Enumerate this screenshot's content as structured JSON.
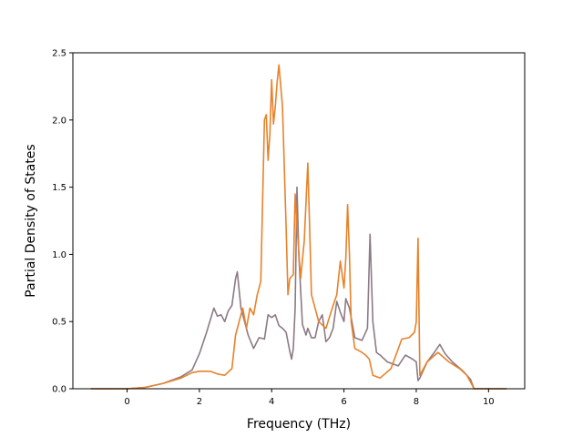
{
  "chart_data": {
    "type": "line",
    "title": "",
    "xlabel": "Frequency (THz)",
    "ylabel": "Partial Density of States",
    "xlim": [
      -1.5,
      11.0
    ],
    "ylim": [
      0.0,
      2.5
    ],
    "xticks": [
      0,
      2,
      4,
      6,
      8,
      10
    ],
    "yticks": [
      0.0,
      0.5,
      1.0,
      1.5,
      2.0,
      2.5
    ],
    "xtick_labels": [
      "0",
      "2",
      "4",
      "6",
      "8",
      "10"
    ],
    "ytick_labels": [
      "0.0",
      "0.5",
      "1.0",
      "1.5",
      "2.0",
      "2.5"
    ],
    "grid": false,
    "legend": "none",
    "series": [
      {
        "color": "#8c7a86",
        "points": [
          [
            -1.0,
            0.0
          ],
          [
            0.0,
            0.0
          ],
          [
            0.5,
            0.01
          ],
          [
            1.0,
            0.04
          ],
          [
            1.5,
            0.09
          ],
          [
            1.8,
            0.14
          ],
          [
            2.0,
            0.26
          ],
          [
            2.2,
            0.42
          ],
          [
            2.4,
            0.6
          ],
          [
            2.5,
            0.54
          ],
          [
            2.6,
            0.55
          ],
          [
            2.7,
            0.5
          ],
          [
            2.8,
            0.58
          ],
          [
            2.9,
            0.62
          ],
          [
            3.0,
            0.82
          ],
          [
            3.05,
            0.87
          ],
          [
            3.15,
            0.6
          ],
          [
            3.25,
            0.5
          ],
          [
            3.35,
            0.4
          ],
          [
            3.5,
            0.3
          ],
          [
            3.65,
            0.38
          ],
          [
            3.8,
            0.37
          ],
          [
            3.9,
            0.55
          ],
          [
            4.0,
            0.53
          ],
          [
            4.1,
            0.55
          ],
          [
            4.2,
            0.47
          ],
          [
            4.3,
            0.45
          ],
          [
            4.4,
            0.42
          ],
          [
            4.5,
            0.28
          ],
          [
            4.55,
            0.22
          ],
          [
            4.6,
            0.3
          ],
          [
            4.65,
            0.6
          ],
          [
            4.7,
            1.5
          ],
          [
            4.75,
            1.0
          ],
          [
            4.85,
            0.48
          ],
          [
            4.95,
            0.4
          ],
          [
            5.0,
            0.45
          ],
          [
            5.1,
            0.38
          ],
          [
            5.2,
            0.38
          ],
          [
            5.3,
            0.5
          ],
          [
            5.4,
            0.55
          ],
          [
            5.5,
            0.35
          ],
          [
            5.6,
            0.38
          ],
          [
            5.7,
            0.45
          ],
          [
            5.8,
            0.65
          ],
          [
            5.9,
            0.57
          ],
          [
            6.0,
            0.5
          ],
          [
            6.05,
            0.67
          ],
          [
            6.15,
            0.6
          ],
          [
            6.3,
            0.38
          ],
          [
            6.5,
            0.36
          ],
          [
            6.65,
            0.45
          ],
          [
            6.72,
            1.15
          ],
          [
            6.8,
            0.5
          ],
          [
            6.9,
            0.27
          ],
          [
            7.0,
            0.25
          ],
          [
            7.2,
            0.2
          ],
          [
            7.5,
            0.17
          ],
          [
            7.7,
            0.25
          ],
          [
            7.9,
            0.22
          ],
          [
            8.0,
            0.2
          ],
          [
            8.05,
            0.06
          ],
          [
            8.1,
            0.08
          ],
          [
            8.3,
            0.2
          ],
          [
            8.5,
            0.27
          ],
          [
            8.65,
            0.33
          ],
          [
            8.8,
            0.26
          ],
          [
            9.0,
            0.2
          ],
          [
            9.3,
            0.13
          ],
          [
            9.5,
            0.07
          ],
          [
            9.6,
            0.0
          ],
          [
            10.5,
            0.0
          ]
        ]
      },
      {
        "color": "#e8822a",
        "points": [
          [
            -1.0,
            0.0
          ],
          [
            0.0,
            0.0
          ],
          [
            0.5,
            0.01
          ],
          [
            1.0,
            0.04
          ],
          [
            1.5,
            0.08
          ],
          [
            1.8,
            0.12
          ],
          [
            2.0,
            0.13
          ],
          [
            2.3,
            0.13
          ],
          [
            2.5,
            0.11
          ],
          [
            2.7,
            0.1
          ],
          [
            2.9,
            0.15
          ],
          [
            3.0,
            0.4
          ],
          [
            3.1,
            0.5
          ],
          [
            3.2,
            0.6
          ],
          [
            3.3,
            0.45
          ],
          [
            3.4,
            0.6
          ],
          [
            3.5,
            0.55
          ],
          [
            3.6,
            0.7
          ],
          [
            3.7,
            0.8
          ],
          [
            3.8,
            2.0
          ],
          [
            3.85,
            2.04
          ],
          [
            3.9,
            1.7
          ],
          [
            3.95,
            1.9
          ],
          [
            4.0,
            2.3
          ],
          [
            4.05,
            1.97
          ],
          [
            4.1,
            2.1
          ],
          [
            4.15,
            2.28
          ],
          [
            4.2,
            2.41
          ],
          [
            4.3,
            2.1
          ],
          [
            4.4,
            1.2
          ],
          [
            4.45,
            0.7
          ],
          [
            4.5,
            0.82
          ],
          [
            4.6,
            0.85
          ],
          [
            4.65,
            1.45
          ],
          [
            4.7,
            1.22
          ],
          [
            4.8,
            0.82
          ],
          [
            4.9,
            1.1
          ],
          [
            5.0,
            1.68
          ],
          [
            5.05,
            1.2
          ],
          [
            5.1,
            0.7
          ],
          [
            5.2,
            0.6
          ],
          [
            5.3,
            0.5
          ],
          [
            5.5,
            0.45
          ],
          [
            5.7,
            0.62
          ],
          [
            5.8,
            0.7
          ],
          [
            5.9,
            0.95
          ],
          [
            6.0,
            0.75
          ],
          [
            6.05,
            0.97
          ],
          [
            6.1,
            1.37
          ],
          [
            6.15,
            1.0
          ],
          [
            6.2,
            0.5
          ],
          [
            6.3,
            0.3
          ],
          [
            6.5,
            0.27
          ],
          [
            6.6,
            0.25
          ],
          [
            6.7,
            0.22
          ],
          [
            6.8,
            0.1
          ],
          [
            7.0,
            0.08
          ],
          [
            7.3,
            0.15
          ],
          [
            7.6,
            0.37
          ],
          [
            7.8,
            0.38
          ],
          [
            7.95,
            0.42
          ],
          [
            8.0,
            0.5
          ],
          [
            8.05,
            1.12
          ],
          [
            8.1,
            0.1
          ],
          [
            8.3,
            0.2
          ],
          [
            8.6,
            0.27
          ],
          [
            8.9,
            0.2
          ],
          [
            9.2,
            0.15
          ],
          [
            9.4,
            0.1
          ],
          [
            9.5,
            0.05
          ],
          [
            9.6,
            0.0
          ],
          [
            10.5,
            0.0
          ]
        ]
      }
    ]
  }
}
